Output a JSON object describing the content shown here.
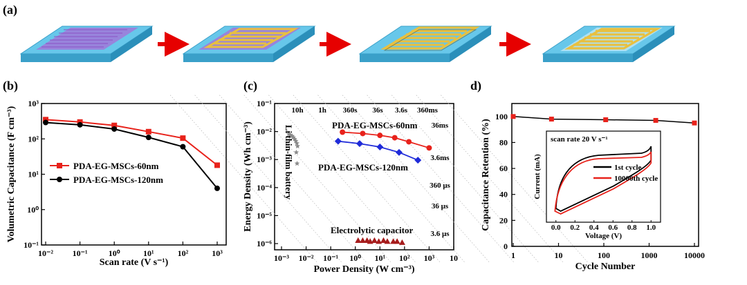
{
  "panel_labels": {
    "a": "(a)",
    "b": "(b)",
    "c": "(c)",
    "d": "d)"
  },
  "colors": {
    "red": "#e8221b",
    "black": "#000000",
    "blue": "#1f2bd9",
    "dark_red": "#a61c1c",
    "grey": "#8a8a8a",
    "substrate": "#5bbde0",
    "gold": "#e8c040",
    "arrow": "#e60000"
  },
  "panel_a": {
    "steps": [
      "substrate-with-graphene-film",
      "gold-pattern-on-film",
      "interdigital-electrodes",
      "electrodes-with-electrolyte"
    ]
  },
  "chart_data": [
    {
      "type": "line",
      "panel": "b",
      "xlabel": "Scan rate (V s⁻¹)",
      "ylabel": "Volumetric Capacitance (F cm⁻³)",
      "xscale": "log",
      "yscale": "log",
      "xlim": [
        0.01,
        1000
      ],
      "ylim": [
        0.1,
        1000
      ],
      "x_ticks": [
        "10⁻²",
        "10⁻¹",
        "10⁰",
        "10¹",
        "10²",
        "10³"
      ],
      "y_ticks": [
        "10⁻¹",
        "10⁰",
        "10¹",
        "10²",
        "10³"
      ],
      "legend_position": "center-left",
      "series": [
        {
          "name": "PDA-EG-MSCs-60nm",
          "color": "#e8221b",
          "marker": "square",
          "x": [
            0.01,
            0.1,
            1,
            10,
            100,
            1000
          ],
          "y": [
            350,
            300,
            240,
            160,
            105,
            18
          ]
        },
        {
          "name": "PDA-EG-MSCs-120nm",
          "color": "#000000",
          "marker": "circle",
          "x": [
            0.01,
            0.1,
            1,
            10,
            100,
            1000
          ],
          "y": [
            290,
            250,
            190,
            110,
            60,
            4
          ]
        }
      ]
    },
    {
      "type": "scatter",
      "panel": "c",
      "xlabel": "Power Density (W cm⁻³)",
      "ylabel": "Energy Density (Wh cm⁻³)",
      "xscale": "log",
      "yscale": "log",
      "xlim": [
        0.001,
        10000
      ],
      "ylim": [
        6e-07,
        0.1
      ],
      "x_ticks": [
        "10⁻³",
        "10⁻²",
        "10⁻¹",
        "10⁰",
        "10¹",
        "10²",
        "10³",
        "10"
      ],
      "y_ticks": [
        "10⁻¹",
        "10⁻²",
        "10⁻³",
        "10⁻⁴",
        "10⁻⁵",
        "10⁻⁶"
      ],
      "time_labels_top": [
        "10h",
        "1h",
        "360s",
        "36s",
        "3.6s",
        "360ms"
      ],
      "time_labels_right": [
        "36ms",
        "3.6ms",
        "360 µs",
        "36 µs",
        "3.6 µs"
      ],
      "series": [
        {
          "name": "PDA-EG-MSCs-60nm",
          "color": "#e8221b",
          "marker": "circle",
          "x": [
            0.3,
            2,
            10,
            40,
            150,
            1000
          ],
          "y": [
            0.0095,
            0.0085,
            0.0073,
            0.006,
            0.0043,
            0.0026
          ]
        },
        {
          "name": "PDA-EG-MSCs-120nm",
          "color": "#1f2bd9",
          "marker": "diamond",
          "x": [
            0.2,
            1.5,
            10,
            60,
            350
          ],
          "y": [
            0.0045,
            0.0037,
            0.0028,
            0.0018,
            0.00095
          ]
        },
        {
          "name": "Electrolytic capacitor",
          "color": "#a61c1c",
          "marker": "triangle",
          "x": [
            1.3,
            2,
            3,
            4,
            6,
            9,
            14,
            20,
            35,
            50,
            80
          ],
          "y": [
            1.3e-06,
            1.3e-06,
            1.3e-06,
            1.2e-06,
            1.3e-06,
            1.2e-06,
            1.3e-06,
            1.2e-06,
            1.2e-06,
            1.2e-06,
            1.1e-06
          ]
        },
        {
          "name": "Li thin-film battery",
          "color": "#8a8a8a",
          "marker": "star",
          "x": [
            0.002,
            0.0023,
            0.0027,
            0.003,
            0.0034,
            0.0038,
            0.0042,
            0.0045,
            0.004,
            0.0043
          ],
          "y": [
            0.008,
            0.0075,
            0.0069,
            0.0062,
            0.0054,
            0.0046,
            0.0038,
            0.003,
            0.0018,
            0.00072
          ]
        }
      ]
    },
    {
      "type": "line",
      "panel": "d",
      "xlabel": "Cycle Number",
      "ylabel": "Capacitance Retention (%)",
      "xscale": "log",
      "xlim": [
        1,
        10000
      ],
      "ylim": [
        0,
        110
      ],
      "x_ticks": [
        "1",
        "10",
        "100",
        "1000",
        "10000"
      ],
      "y_ticks": [
        "0",
        "20",
        "40",
        "60",
        "80",
        "100"
      ],
      "series": [
        {
          "name": "retention",
          "color": "#000000",
          "marker": "square",
          "marker_color": "#e8221b",
          "x": [
            1,
            7,
            110,
            1400,
            10000
          ],
          "y": [
            100,
            98,
            97.5,
            97,
            95
          ]
        }
      ],
      "inset": {
        "type": "line",
        "xlabel": "Voltage (V)",
        "ylabel": "Current (mA)",
        "annotation": "scan rate 20 V s⁻¹",
        "xlim": [
          -0.1,
          1.1
        ],
        "x_ticks": [
          "0.0",
          "0.2",
          "0.4",
          "0.6",
          "0.8",
          "1.0"
        ],
        "legend": [
          "1st cycle",
          "10000th cycle"
        ],
        "series_colors": [
          "#000000",
          "#e8221b"
        ]
      }
    }
  ]
}
